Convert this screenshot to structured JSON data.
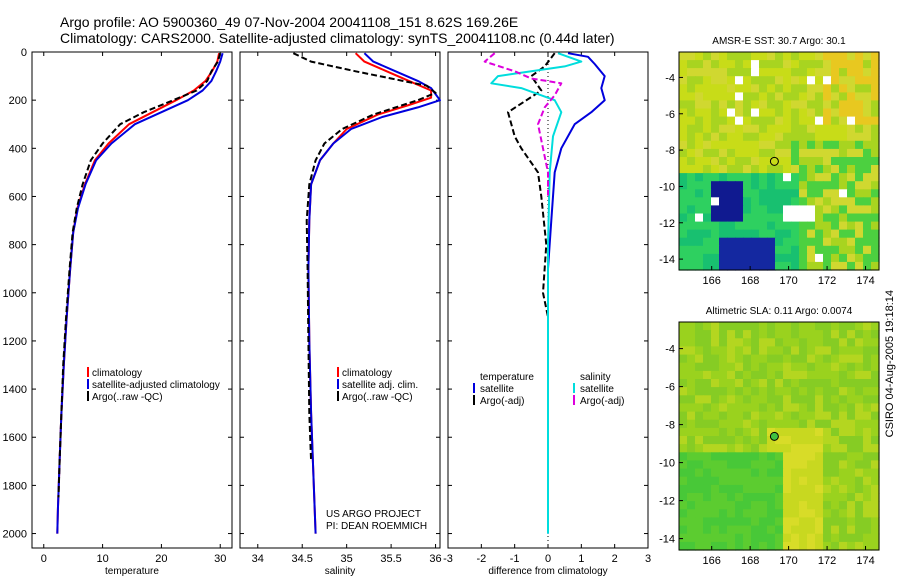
{
  "header": {
    "title_line1": "Argo profile: AO 5900360_49 07-Nov-2004 20041108_151 8.62S 169.26E",
    "title_line2": "Climatology: CARS2000. Satellite-adjusted climatology: synTS_20041108.nc (0.44d later)"
  },
  "credit": "CSIRO 04-Aug-2005 19:18:14",
  "colors": {
    "clim": "#ff0000",
    "sat": "#0000dd",
    "argo": "#000000",
    "sal_sat": "#00dddd",
    "sal_argo": "#dd00dd"
  },
  "chart_data": [
    {
      "type": "line",
      "name": "temperature",
      "xlabel": "temperature",
      "xlim": [
        -2,
        32
      ],
      "ylim": [
        0,
        2060
      ],
      "xticks": [
        0,
        10,
        20,
        30
      ],
      "yticks": [
        0,
        200,
        400,
        600,
        800,
        1000,
        1200,
        1400,
        1600,
        1800,
        2000
      ],
      "legend": [
        "climatology",
        "satellite-adjusted climatology",
        "Argo(..raw -QC)"
      ],
      "series": [
        {
          "name": "climatology",
          "style": "solid",
          "color": "#ff0000",
          "points": [
            [
              29.8,
              5
            ],
            [
              29.5,
              40
            ],
            [
              28.6,
              80
            ],
            [
              27.5,
              120
            ],
            [
              25.5,
              160
            ],
            [
              22.5,
              200
            ],
            [
              18.5,
              250
            ],
            [
              14.5,
              300
            ],
            [
              11.0,
              380
            ],
            [
              8.7,
              450
            ],
            [
              7.0,
              550
            ],
            [
              5.7,
              650
            ],
            [
              5.0,
              750
            ],
            [
              4.5,
              900
            ],
            [
              3.9,
              1100
            ],
            [
              3.4,
              1300
            ],
            [
              3.0,
              1500
            ],
            [
              2.7,
              1700
            ],
            [
              2.4,
              1900
            ],
            [
              2.3,
              2000
            ]
          ]
        },
        {
          "name": "satellite-adjusted climatology",
          "style": "solid",
          "color": "#0000dd",
          "points": [
            [
              30.4,
              5
            ],
            [
              30.0,
              40
            ],
            [
              29.3,
              80
            ],
            [
              28.5,
              120
            ],
            [
              27.0,
              160
            ],
            [
              24.5,
              200
            ],
            [
              20.0,
              250
            ],
            [
              15.5,
              300
            ],
            [
              11.5,
              380
            ],
            [
              8.9,
              450
            ],
            [
              7.1,
              550
            ],
            [
              5.8,
              650
            ],
            [
              5.0,
              750
            ],
            [
              4.5,
              900
            ],
            [
              3.9,
              1100
            ],
            [
              3.4,
              1300
            ],
            [
              3.0,
              1500
            ],
            [
              2.7,
              1700
            ],
            [
              2.4,
              1900
            ],
            [
              2.3,
              2000
            ]
          ]
        },
        {
          "name": "Argo(..raw -QC)",
          "style": "dash",
          "color": "#000000",
          "points": [
            [
              30.0,
              5
            ],
            [
              29.6,
              40
            ],
            [
              28.5,
              80
            ],
            [
              27.8,
              120
            ],
            [
              26.0,
              160
            ],
            [
              22.0,
              200
            ],
            [
              17.0,
              250
            ],
            [
              13.0,
              300
            ],
            [
              10.0,
              380
            ],
            [
              8.0,
              450
            ],
            [
              6.6,
              550
            ],
            [
              5.6,
              650
            ],
            [
              4.9,
              750
            ],
            [
              4.4,
              900
            ],
            [
              3.8,
              1100
            ],
            [
              3.3,
              1300
            ],
            [
              3.0,
              1500
            ],
            [
              2.7,
              1700
            ],
            [
              2.5,
              1850
            ]
          ]
        }
      ]
    },
    {
      "type": "line",
      "name": "salinity",
      "xlabel": "salinity",
      "xlim": [
        33.8,
        36.05
      ],
      "ylim": [
        0,
        2060
      ],
      "xticks": [
        34,
        34.5,
        35,
        35.5,
        36
      ],
      "yticks": [],
      "legend": [
        "climatology",
        "satellite adj. clim.",
        "Argo(..raw -QC)"
      ],
      "annotation": [
        "US ARGO PROJECT",
        "PI: DEAN ROEMMICH"
      ],
      "series": [
        {
          "name": "climatology",
          "style": "solid",
          "color": "#ff0000",
          "points": [
            [
              35.1,
              5
            ],
            [
              35.2,
              40
            ],
            [
              35.45,
              80
            ],
            [
              35.7,
              120
            ],
            [
              35.95,
              160
            ],
            [
              35.95,
              190
            ],
            [
              35.7,
              220
            ],
            [
              35.35,
              260
            ],
            [
              35.0,
              320
            ],
            [
              34.85,
              380
            ],
            [
              34.7,
              450
            ],
            [
              34.6,
              550
            ],
            [
              34.58,
              700
            ],
            [
              34.57,
              900
            ],
            [
              34.58,
              1200
            ],
            [
              34.6,
              1500
            ],
            [
              34.63,
              1800
            ],
            [
              34.65,
              2000
            ]
          ]
        },
        {
          "name": "satellite adj. clim.",
          "style": "solid",
          "color": "#0000dd",
          "points": [
            [
              35.2,
              5
            ],
            [
              35.3,
              40
            ],
            [
              35.55,
              80
            ],
            [
              35.8,
              120
            ],
            [
              35.95,
              150
            ],
            [
              36.05,
              200
            ],
            [
              35.8,
              230
            ],
            [
              35.4,
              270
            ],
            [
              35.05,
              320
            ],
            [
              34.85,
              380
            ],
            [
              34.7,
              450
            ],
            [
              34.6,
              550
            ],
            [
              34.58,
              700
            ],
            [
              34.57,
              900
            ],
            [
              34.58,
              1200
            ],
            [
              34.6,
              1500
            ],
            [
              34.63,
              1800
            ],
            [
              34.65,
              2000
            ]
          ]
        },
        {
          "name": "Argo(..raw -QC)",
          "style": "dash",
          "color": "#000000",
          "points": [
            [
              34.4,
              5
            ],
            [
              34.6,
              40
            ],
            [
              35.1,
              80
            ],
            [
              35.5,
              110
            ],
            [
              35.9,
              140
            ],
            [
              36.0,
              170
            ],
            [
              35.8,
              200
            ],
            [
              35.3,
              260
            ],
            [
              34.95,
              320
            ],
            [
              34.75,
              380
            ],
            [
              34.65,
              450
            ],
            [
              34.58,
              550
            ],
            [
              34.55,
              700
            ],
            [
              34.56,
              900
            ],
            [
              34.57,
              1200
            ],
            [
              34.58,
              1500
            ],
            [
              34.6,
              1700
            ]
          ]
        }
      ]
    },
    {
      "type": "line",
      "name": "difference",
      "xlabel": "difference from climatology",
      "xlim": [
        -3,
        3
      ],
      "ylim": [
        0,
        2060
      ],
      "xticks": [
        -3,
        -2,
        -1,
        0,
        1,
        2,
        3
      ],
      "yticks": [],
      "legend_left": [
        "temperature",
        "satellite",
        "Argo(-adj)"
      ],
      "legend_right": [
        "salinity",
        "satellite",
        "Argo(-adj)"
      ],
      "series": [
        {
          "name": "temperature satellite",
          "style": "solid",
          "color": "#0000dd",
          "points": [
            [
              0.6,
              5
            ],
            [
              1.2,
              20
            ],
            [
              1.4,
              50
            ],
            [
              1.7,
              100
            ],
            [
              1.6,
              150
            ],
            [
              1.7,
              200
            ],
            [
              1.3,
              250
            ],
            [
              0.8,
              300
            ],
            [
              0.4,
              400
            ],
            [
              0.2,
              500
            ],
            [
              0.1,
              700
            ],
            [
              0.0,
              900
            ],
            [
              0.0,
              2000
            ]
          ]
        },
        {
          "name": "temperature Argo(-adj)",
          "style": "dash",
          "color": "#000000",
          "points": [
            [
              0.2,
              5
            ],
            [
              -0.1,
              60
            ],
            [
              -0.5,
              100
            ],
            [
              -0.2,
              160
            ],
            [
              -1.2,
              250
            ],
            [
              -1.0,
              350
            ],
            [
              -0.8,
              400
            ],
            [
              -0.3,
              500
            ],
            [
              -0.2,
              600
            ],
            [
              -0.05,
              800
            ],
            [
              -0.15,
              1000
            ],
            [
              0.0,
              1100
            ],
            [
              0.0,
              1500
            ],
            [
              0.0,
              2000
            ]
          ]
        },
        {
          "name": "salinity satellite",
          "style": "solid",
          "color": "#00dddd",
          "points": [
            [
              0.3,
              5
            ],
            [
              1.0,
              40
            ],
            [
              0.5,
              60
            ],
            [
              -0.5,
              80
            ],
            [
              -1.5,
              100
            ],
            [
              -1.7,
              130
            ],
            [
              -0.8,
              150
            ],
            [
              0.2,
              200
            ],
            [
              0.4,
              250
            ],
            [
              0.15,
              350
            ],
            [
              0.05,
              500
            ],
            [
              0.0,
              800
            ],
            [
              0.0,
              2000
            ]
          ]
        },
        {
          "name": "salinity Argo(-adj)",
          "style": "dash",
          "color": "#dd00dd",
          "points": [
            [
              -1.6,
              5
            ],
            [
              -1.9,
              40
            ],
            [
              -1.0,
              80
            ],
            [
              -0.5,
              110
            ],
            [
              0.4,
              130
            ],
            [
              0.2,
              180
            ],
            [
              -0.1,
              230
            ],
            [
              -0.3,
              300
            ],
            [
              -0.15,
              400
            ],
            [
              0.0,
              500
            ],
            [
              0.0,
              600
            ]
          ]
        }
      ]
    },
    {
      "type": "heatmap",
      "name": "sst_map",
      "title": "AMSR-E SST: 30.7 Argo: 30.1",
      "xlim": [
        164.3,
        174.7
      ],
      "ylim": [
        -14.6,
        -2.6
      ],
      "xticks": [
        166,
        168,
        170,
        172,
        174
      ],
      "yticks": [
        -4,
        -6,
        -8,
        -10,
        -12,
        -14
      ],
      "profile_lon": 169.26,
      "profile_lat": -8.62
    },
    {
      "type": "heatmap",
      "name": "sla_map",
      "title": "Altimetric SLA: 0.11 Argo: 0.0074",
      "xlim": [
        164.3,
        174.7
      ],
      "ylim": [
        -14.6,
        -2.6
      ],
      "xticks": [
        166,
        168,
        170,
        172,
        174
      ],
      "yticks": [
        -4,
        -6,
        -8,
        -10,
        -12,
        -14
      ],
      "profile_lon": 169.26,
      "profile_lat": -8.62
    }
  ]
}
